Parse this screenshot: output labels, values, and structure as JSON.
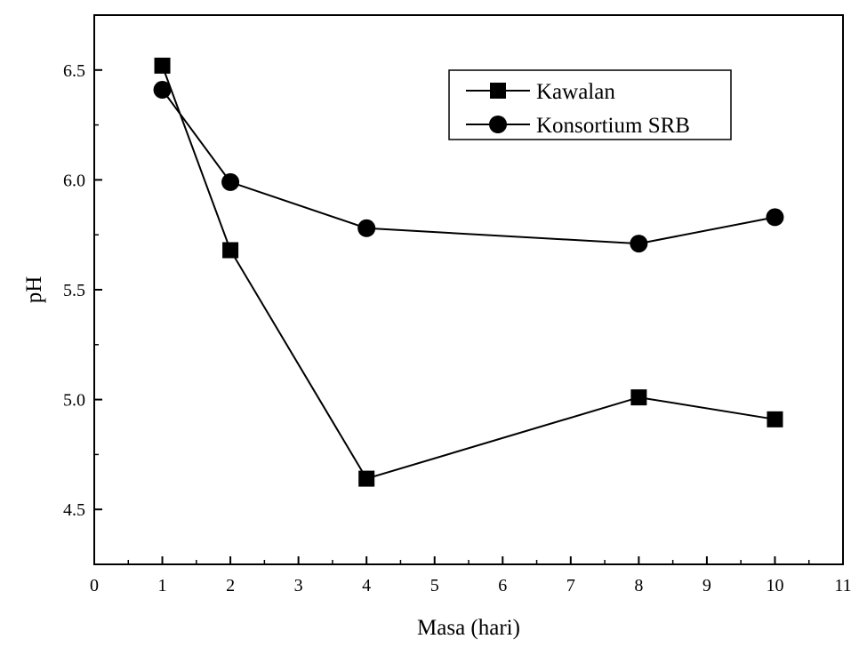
{
  "chart_data": {
    "type": "line",
    "title": "",
    "xlabel": "Masa (hari)",
    "ylabel": "pH",
    "xlim": [
      0,
      11
    ],
    "ylim": [
      4.25,
      6.75
    ],
    "xticks": [
      0,
      1,
      2,
      3,
      4,
      5,
      6,
      7,
      8,
      9,
      10,
      11
    ],
    "xtick_labels": [
      "0",
      "1",
      "2",
      "3",
      "4",
      "5",
      "6",
      "7",
      "8",
      "9",
      "10",
      "11"
    ],
    "yticks": [
      4.5,
      5.0,
      5.5,
      6.0,
      6.5
    ],
    "ytick_labels": [
      "4.5",
      "5.0",
      "5.5",
      "6.0",
      "6.5"
    ],
    "grid": false,
    "legend_position": "top-right",
    "x": [
      1,
      2,
      4,
      8,
      10
    ],
    "series": [
      {
        "name": "Kawalan",
        "marker": "square",
        "color": "#000000",
        "values": [
          6.52,
          5.68,
          4.64,
          5.01,
          4.91
        ]
      },
      {
        "name": "Konsortium SRB",
        "marker": "circle",
        "color": "#000000",
        "values": [
          6.41,
          5.99,
          5.78,
          5.71,
          5.83
        ]
      }
    ]
  }
}
